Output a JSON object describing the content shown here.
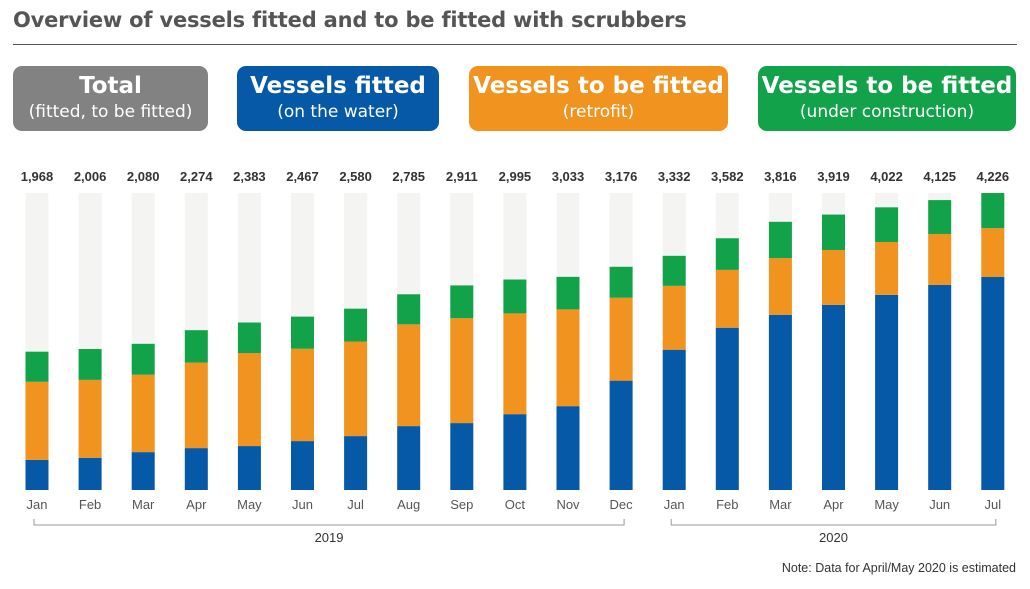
{
  "title": "Overview of vessels fitted and to be fitted with scrubbers",
  "legend": [
    {
      "key": "total",
      "main": "Total",
      "sub": "(fitted, to be fitted)",
      "color": "#828282"
    },
    {
      "key": "fitted",
      "main": "Vessels fitted",
      "sub": "(on the water)",
      "color": "#0659a6"
    },
    {
      "key": "retrofit",
      "main": "Vessels to be fitted",
      "sub": "(retrofit)",
      "color": "#f0931f"
    },
    {
      "key": "newbuild",
      "main": "Vessels to be fitted",
      "sub": "(under construction)",
      "color": "#12a24a"
    }
  ],
  "note": "Note: Data for April/May 2020 is estimated",
  "chart_data": {
    "type": "bar",
    "stacked": true,
    "ylim": [
      0,
      4226
    ],
    "grid": false,
    "categories": [
      "Jan",
      "Feb",
      "Mar",
      "Apr",
      "May",
      "Jun",
      "Jul",
      "Aug",
      "Sep",
      "Oct",
      "Nov",
      "Dec",
      "Jan",
      "Feb",
      "Mar",
      "Apr",
      "May",
      "Jun",
      "Jul"
    ],
    "year_groups": [
      {
        "label": "2019",
        "start": 0,
        "end": 11
      },
      {
        "label": "2020",
        "start": 12,
        "end": 18
      }
    ],
    "totals": [
      1968,
      2006,
      2080,
      2274,
      2383,
      2467,
      2580,
      2785,
      2911,
      2995,
      3033,
      3176,
      3332,
      3582,
      3816,
      3919,
      4022,
      4125,
      4226
    ],
    "background_color": "#f4f4f2",
    "series": [
      {
        "name": "Vessels fitted",
        "color": "#0659a6",
        "values": [
          429,
          458,
          539,
          596,
          625,
          696,
          767,
          909,
          952,
          1079,
          1193,
          1556,
          1996,
          2309,
          2493,
          2635,
          2777,
          2919,
          3031
        ]
      },
      {
        "name": "Vessels to be fitted (retrofit)",
        "color": "#f0931f",
        "values": [
          1111,
          1109,
          1101,
          1217,
          1324,
          1314,
          1346,
          1448,
          1493,
          1434,
          1377,
          1180,
          909,
          823,
          806,
          780,
          752,
          724,
          695
        ]
      },
      {
        "name": "Vessels to be fitted (under construction)",
        "color": "#12a24a",
        "values": [
          428,
          439,
          440,
          461,
          434,
          457,
          467,
          428,
          466,
          482,
          463,
          440,
          427,
          450,
          517,
          504,
          493,
          482,
          500
        ]
      }
    ]
  }
}
